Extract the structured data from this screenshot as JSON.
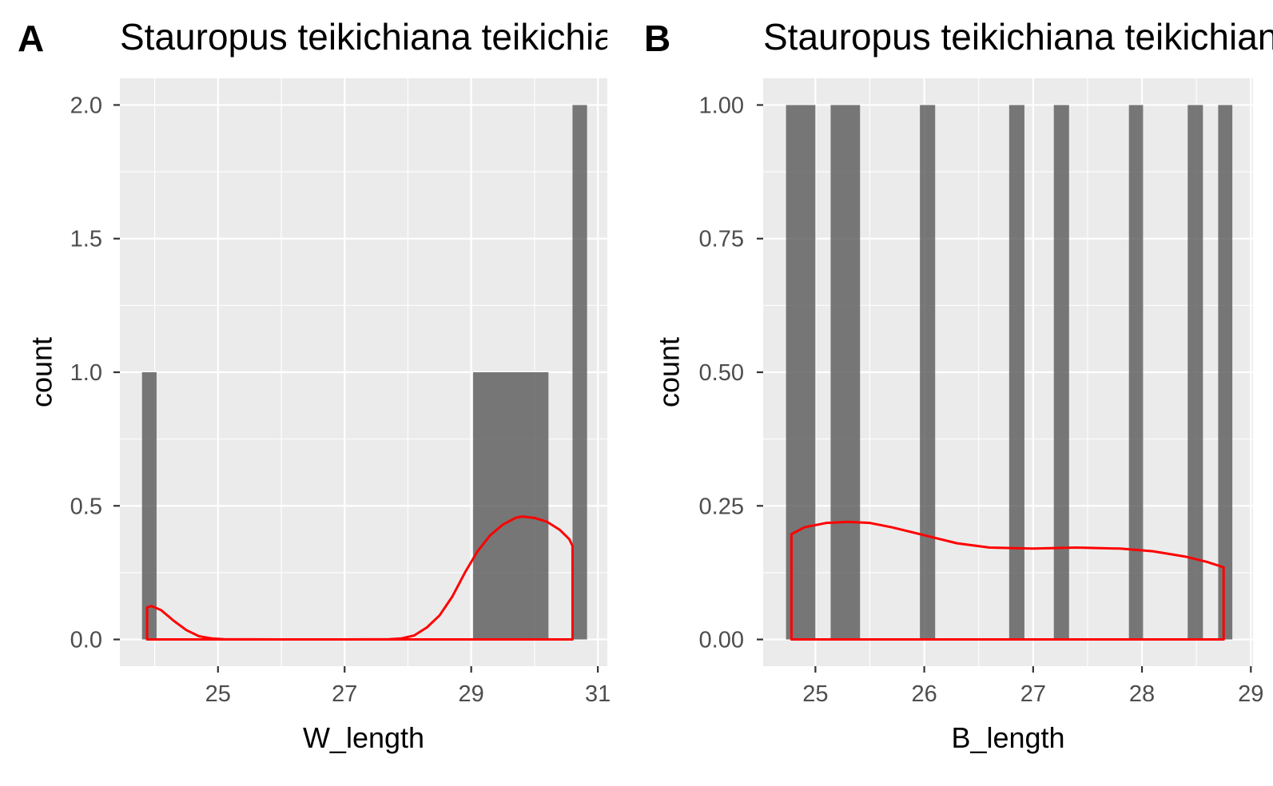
{
  "chart_data": [
    {
      "tag": "A",
      "type": "bar",
      "title": "Stauropus teikichiana teikichiana",
      "xlabel": "W_length",
      "ylabel": "count",
      "xlim": [
        23.45,
        31.15
      ],
      "ylim": [
        -0.1,
        2.1
      ],
      "x_ticks": [
        25,
        27,
        29,
        31
      ],
      "x_minor": [
        24,
        26,
        28,
        30
      ],
      "y_ticks": [
        0.0,
        0.5,
        1.0,
        1.5,
        2.0
      ],
      "y_tick_labels": [
        "0.0",
        "0.5",
        "1.0",
        "1.5",
        "2.0"
      ],
      "y_minor": [
        0.25,
        0.75,
        1.25,
        1.75
      ],
      "bars": [
        {
          "x0": 23.8,
          "x1": 24.03,
          "count": 1
        },
        {
          "x0": 29.03,
          "x1": 30.22,
          "count": 1
        },
        {
          "x0": 30.6,
          "x1": 30.83,
          "count": 2
        }
      ],
      "density": {
        "x": [
          23.88,
          23.95,
          24.1,
          24.3,
          24.5,
          24.7,
          24.9,
          25.1,
          26,
          27,
          27.7,
          27.9,
          28.1,
          28.3,
          28.5,
          28.7,
          28.9,
          29.1,
          29.3,
          29.5,
          29.7,
          29.8,
          30.0,
          30.2,
          30.4,
          30.55,
          30.6
        ],
        "y": [
          0.12,
          0.125,
          0.11,
          0.07,
          0.035,
          0.012,
          0.004,
          0.001,
          0,
          0,
          0.001,
          0.004,
          0.015,
          0.045,
          0.09,
          0.16,
          0.25,
          0.33,
          0.39,
          0.43,
          0.455,
          0.46,
          0.455,
          0.44,
          0.41,
          0.375,
          0.35
        ],
        "color": "#ff0000"
      }
    },
    {
      "tag": "B",
      "type": "bar",
      "title": "Stauropus teikichiana teikichiana",
      "xlabel": "B_length",
      "ylabel": "count",
      "xlim": [
        24.52,
        29.02
      ],
      "ylim": [
        -0.05,
        1.05
      ],
      "x_ticks": [
        25,
        26,
        27,
        28,
        29
      ],
      "x_minor": [
        25.5,
        26.5,
        27.5,
        28.5
      ],
      "y_ticks": [
        0.0,
        0.25,
        0.5,
        0.75,
        1.0
      ],
      "y_tick_labels": [
        "0.00",
        "0.25",
        "0.50",
        "0.75",
        "1.00"
      ],
      "y_minor": [
        0.125,
        0.375,
        0.625,
        0.875
      ],
      "bars": [
        {
          "x0": 24.73,
          "x1": 25.0,
          "count": 1
        },
        {
          "x0": 25.14,
          "x1": 25.41,
          "count": 1
        },
        {
          "x0": 25.96,
          "x1": 26.1,
          "count": 1
        },
        {
          "x0": 26.78,
          "x1": 26.92,
          "count": 1
        },
        {
          "x0": 27.19,
          "x1": 27.33,
          "count": 1
        },
        {
          "x0": 27.88,
          "x1": 28.01,
          "count": 1
        },
        {
          "x0": 28.42,
          "x1": 28.56,
          "count": 1
        },
        {
          "x0": 28.7,
          "x1": 28.83,
          "count": 1
        }
      ],
      "density": {
        "x": [
          24.78,
          24.9,
          25.1,
          25.3,
          25.5,
          25.7,
          26.0,
          26.3,
          26.6,
          27.0,
          27.4,
          27.8,
          28.1,
          28.4,
          28.6,
          28.75
        ],
        "y": [
          0.197,
          0.21,
          0.218,
          0.22,
          0.218,
          0.21,
          0.195,
          0.18,
          0.172,
          0.17,
          0.172,
          0.17,
          0.165,
          0.155,
          0.145,
          0.135
        ],
        "color": "#ff0000"
      }
    }
  ]
}
